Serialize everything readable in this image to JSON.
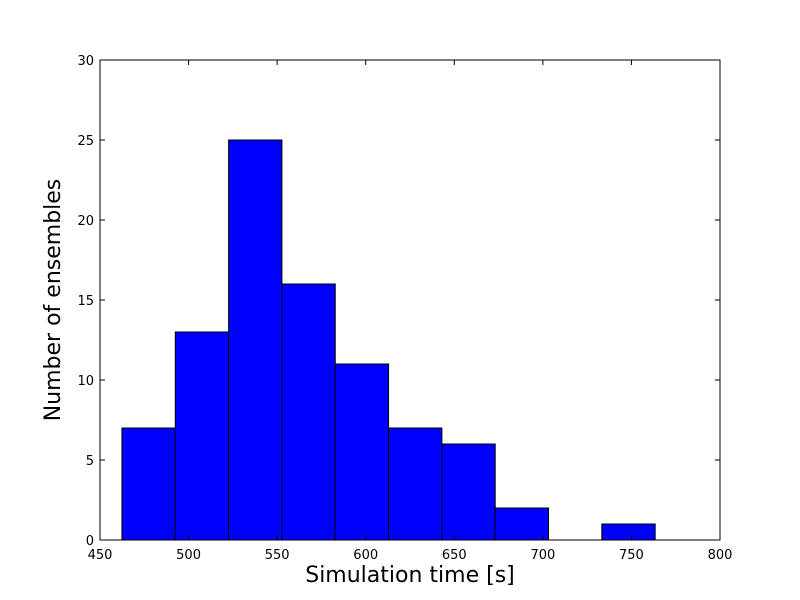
{
  "chart_data": {
    "type": "histogram",
    "xlabel": "Simulation time [s]",
    "ylabel": "Number of ensembles",
    "bins": [
      462.4,
      492.5,
      522.6,
      552.7,
      582.8,
      612.9,
      643.0,
      673.1,
      703.2,
      733.3,
      763.4
    ],
    "values": [
      7,
      13,
      25,
      16,
      11,
      7,
      6,
      2,
      0,
      1
    ],
    "color": "#0000ff",
    "xlim": [
      450,
      800
    ],
    "xticks": [
      450,
      500,
      550,
      600,
      650,
      700,
      750,
      800
    ],
    "ylim": [
      0,
      30
    ],
    "yticks": [
      0,
      5,
      10,
      15,
      20,
      25,
      30
    ]
  }
}
